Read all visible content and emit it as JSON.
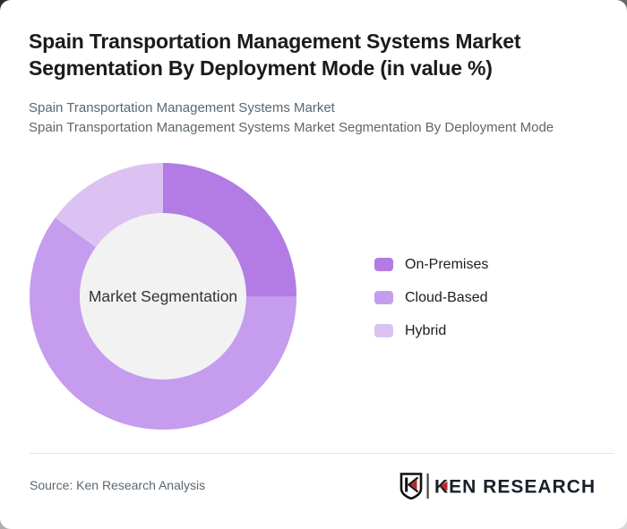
{
  "header": {
    "title_lines": {
      "0": "Spain Transportation Management Systems Market",
      "1": "Segmentation By Deployment Mode (in value %)"
    },
    "subtitles": {
      "0": "Spain Transportation Management Systems Market",
      "1": "Spain Transportation Management Systems Market Segmentation By Deployment Mode"
    }
  },
  "chart_data": {
    "type": "pie",
    "subtype": "donut",
    "title": "Spain Transportation Management Systems Market Segmentation By Deployment Mode (in value %)",
    "center_label": "Market Segmentation",
    "categories": [
      "On-Premises",
      "Cloud-Based",
      "Hybrid"
    ],
    "values": [
      25,
      60,
      15
    ],
    "unit": "percent of value",
    "colors": [
      "#b27ce4",
      "#c69cee",
      "#dcc2f3"
    ],
    "start_angle_deg": 0,
    "direction": "clockwise",
    "legend_position": "right",
    "hole_color": "#f2f2f2",
    "hole_ratio": 0.62
  },
  "footer": {
    "source": "Source: Ken Research Analysis",
    "logo": {
      "text": "KEN RESEARCH",
      "mark": "shield-K-monogram",
      "accent_color": "#c42127",
      "text_color": "#16212b"
    }
  }
}
